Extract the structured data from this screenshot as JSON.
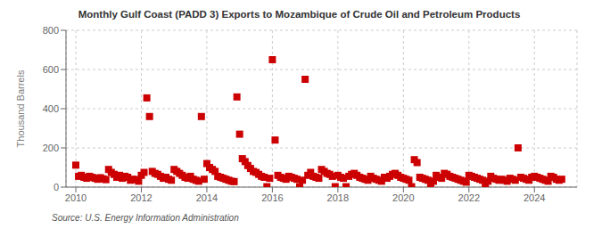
{
  "chart_data": {
    "type": "scatter",
    "title": "Monthly Gulf Coast (PADD 3) Exports to Mozambique of Crude Oil and Petroleum Products",
    "ylabel": "Thousand Barrels",
    "annotation": "Source: U.S. Energy Information Administration",
    "color": "#cc0000",
    "marker": "square",
    "grid": true,
    "xlim": [
      2009.7,
      2025.3
    ],
    "xticks": [
      2010,
      2012,
      2014,
      2016,
      2018,
      2020,
      2022,
      2024
    ],
    "ylim": [
      0,
      800
    ],
    "yticks": [
      0,
      200,
      400,
      600,
      800
    ],
    "x": [
      2010.0,
      2010.083,
      2010.167,
      2010.25,
      2010.333,
      2010.417,
      2010.5,
      2010.583,
      2010.667,
      2010.75,
      2010.833,
      2010.917,
      2011.0,
      2011.083,
      2011.167,
      2011.25,
      2011.333,
      2011.417,
      2011.5,
      2011.583,
      2011.667,
      2011.75,
      2011.833,
      2011.917,
      2012.0,
      2012.083,
      2012.167,
      2012.25,
      2012.333,
      2012.417,
      2012.5,
      2012.583,
      2012.667,
      2012.75,
      2012.833,
      2012.917,
      2013.0,
      2013.083,
      2013.167,
      2013.25,
      2013.333,
      2013.417,
      2013.5,
      2013.583,
      2013.667,
      2013.75,
      2013.833,
      2013.917,
      2014.0,
      2014.083,
      2014.167,
      2014.25,
      2014.333,
      2014.417,
      2014.5,
      2014.583,
      2014.667,
      2014.75,
      2014.833,
      2014.917,
      2015.0,
      2015.083,
      2015.167,
      2015.25,
      2015.333,
      2015.417,
      2015.5,
      2015.583,
      2015.667,
      2015.75,
      2015.833,
      2015.917,
      2016.0,
      2016.083,
      2016.167,
      2016.25,
      2016.333,
      2016.417,
      2016.5,
      2016.583,
      2016.667,
      2016.75,
      2016.833,
      2016.917,
      2017.0,
      2017.083,
      2017.167,
      2017.25,
      2017.333,
      2017.417,
      2017.5,
      2017.583,
      2017.667,
      2017.75,
      2017.833,
      2017.917,
      2018.0,
      2018.083,
      2018.167,
      2018.25,
      2018.333,
      2018.417,
      2018.5,
      2018.583,
      2018.667,
      2018.75,
      2018.833,
      2018.917,
      2019.0,
      2019.083,
      2019.167,
      2019.25,
      2019.333,
      2019.417,
      2019.5,
      2019.583,
      2019.667,
      2019.75,
      2019.833,
      2019.917,
      2020.0,
      2020.083,
      2020.167,
      2020.25,
      2020.333,
      2020.417,
      2020.5,
      2020.583,
      2020.667,
      2020.75,
      2020.833,
      2020.917,
      2021.0,
      2021.083,
      2021.167,
      2021.25,
      2021.333,
      2021.417,
      2021.5,
      2021.583,
      2021.667,
      2021.75,
      2021.833,
      2021.917,
      2022.0,
      2022.083,
      2022.167,
      2022.25,
      2022.333,
      2022.417,
      2022.5,
      2022.583,
      2022.667,
      2022.75,
      2022.833,
      2022.917,
      2023.0,
      2023.083,
      2023.167,
      2023.25,
      2023.333,
      2023.417,
      2023.5,
      2023.583,
      2023.667,
      2023.75,
      2023.833,
      2023.917,
      2024.0,
      2024.083,
      2024.167,
      2024.25,
      2024.333,
      2024.417,
      2024.5,
      2024.583,
      2024.667,
      2024.75,
      2024.833
    ],
    "values": [
      112,
      55,
      60,
      50,
      45,
      55,
      50,
      45,
      40,
      48,
      42,
      38,
      90,
      75,
      65,
      50,
      60,
      45,
      55,
      50,
      35,
      40,
      38,
      30,
      60,
      75,
      455,
      360,
      80,
      70,
      65,
      55,
      45,
      50,
      40,
      35,
      90,
      80,
      70,
      60,
      50,
      45,
      55,
      40,
      35,
      30,
      360,
      40,
      120,
      100,
      90,
      80,
      55,
      50,
      45,
      40,
      35,
      30,
      28,
      460,
      270,
      145,
      130,
      110,
      95,
      80,
      75,
      65,
      55,
      50,
      2,
      45,
      650,
      240,
      60,
      50,
      45,
      40,
      55,
      50,
      45,
      40,
      2,
      35,
      550,
      60,
      75,
      55,
      50,
      45,
      90,
      80,
      70,
      65,
      55,
      2,
      60,
      50,
      45,
      2,
      55,
      65,
      70,
      60,
      50,
      45,
      40,
      35,
      55,
      45,
      40,
      35,
      30,
      50,
      45,
      55,
      65,
      70,
      60,
      50,
      45,
      40,
      35,
      2,
      140,
      125,
      50,
      45,
      40,
      35,
      2,
      30,
      60,
      50,
      45,
      70,
      65,
      55,
      50,
      45,
      40,
      35,
      30,
      25,
      60,
      55,
      50,
      45,
      40,
      35,
      2,
      30,
      55,
      45,
      40,
      35,
      40,
      35,
      30,
      45,
      40,
      35,
      200,
      50,
      45,
      40,
      35,
      50,
      55,
      50,
      45,
      40,
      35,
      30,
      55,
      50,
      40,
      35,
      40
    ]
  }
}
